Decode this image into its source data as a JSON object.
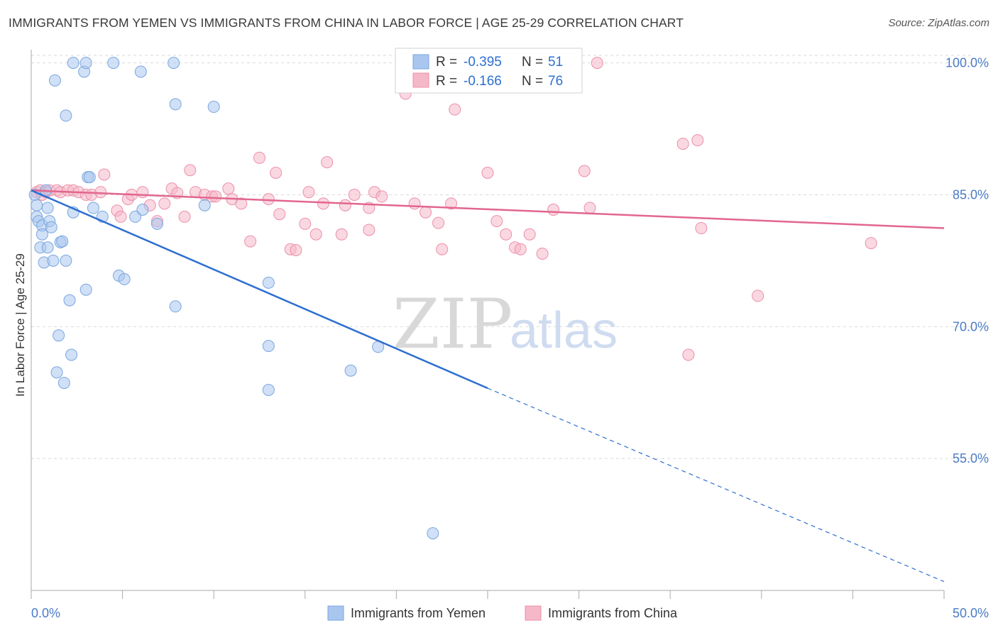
{
  "title": "IMMIGRANTS FROM YEMEN VS IMMIGRANTS FROM CHINA IN LABOR FORCE | AGE 25-29 CORRELATION CHART",
  "source": "Source: ZipAtlas.com",
  "watermark": {
    "zip": "ZIP",
    "atlas": "atlas"
  },
  "legend": {
    "r_label": "R =",
    "n_label": "N =",
    "rows": [
      {
        "r": "-0.395",
        "n": "51",
        "color": "#a9c6ef"
      },
      {
        "r": "-0.166",
        "n": "76",
        "color": "#f5b8c9"
      }
    ]
  },
  "bottom_legend": [
    {
      "label": "Immigrants from Yemen",
      "color": "#a9c6ef"
    },
    {
      "label": "Immigrants from China",
      "color": "#f5b8c9"
    }
  ],
  "colors": {
    "yemen_fill": "#a9c6ef",
    "yemen_stroke": "#7aa6e0",
    "yemen_line": "#2e6fd0",
    "china_fill": "#f5b8c9",
    "china_stroke": "#ec8faa",
    "china_line": "#e2668f",
    "grid": "#d9d9d9",
    "tick_label": "#4a7bc8"
  },
  "chart_data": {
    "type": "scatter",
    "title": "IMMIGRANTS FROM YEMEN VS IMMIGRANTS FROM CHINA IN LABOR FORCE | AGE 25-29 CORRELATION CHART",
    "xlabel": "",
    "ylabel": "In Labor Force | Age 25-29",
    "xlim": [
      0,
      50
    ],
    "ylim": [
      40,
      101.5
    ],
    "x_tick_labels": [
      "0.0%",
      "50.0%"
    ],
    "y_ticks": [
      55,
      70,
      85,
      100
    ],
    "y_tick_labels": [
      "55.0%",
      "70.0%",
      "85.0%",
      "100.0%"
    ],
    "grid": true,
    "legend_position": "top-center",
    "series": [
      {
        "name": "Immigrants from Yemen",
        "r": -0.395,
        "n": 51,
        "trend": {
          "x0": 0,
          "y0": 85.5,
          "x1": 25,
          "y1": 63.0,
          "dashed_to_x": 50,
          "dashed_to_y": 41.0
        },
        "points": [
          [
            0.2,
            85.0
          ],
          [
            0.3,
            83.8
          ],
          [
            0.3,
            82.5
          ],
          [
            0.4,
            82.0
          ],
          [
            0.5,
            79.0
          ],
          [
            0.6,
            81.5
          ],
          [
            0.6,
            80.5
          ],
          [
            0.7,
            77.3
          ],
          [
            0.8,
            85.5
          ],
          [
            0.9,
            79.0
          ],
          [
            0.9,
            83.5
          ],
          [
            1.0,
            82.0
          ],
          [
            1.1,
            81.3
          ],
          [
            1.2,
            77.5
          ],
          [
            1.3,
            98.0
          ],
          [
            1.4,
            64.8
          ],
          [
            1.5,
            69.0
          ],
          [
            1.6,
            79.6
          ],
          [
            1.7,
            79.7
          ],
          [
            1.8,
            63.6
          ],
          [
            1.9,
            94.0
          ],
          [
            1.9,
            77.5
          ],
          [
            2.1,
            73.0
          ],
          [
            2.2,
            66.8
          ],
          [
            2.3,
            83.0
          ],
          [
            2.3,
            100.0
          ],
          [
            2.9,
            99.0
          ],
          [
            3.0,
            100.0
          ],
          [
            3.0,
            74.2
          ],
          [
            3.1,
            87.0
          ],
          [
            3.2,
            87.0
          ],
          [
            3.4,
            83.5
          ],
          [
            3.9,
            82.5
          ],
          [
            4.5,
            100.0
          ],
          [
            4.8,
            75.8
          ],
          [
            5.1,
            75.4
          ],
          [
            5.7,
            82.5
          ],
          [
            6.0,
            99.0
          ],
          [
            6.1,
            83.3
          ],
          [
            6.9,
            81.7
          ],
          [
            7.8,
            100.0
          ],
          [
            7.9,
            95.3
          ],
          [
            7.9,
            72.3
          ],
          [
            9.5,
            83.8
          ],
          [
            10.0,
            95.0
          ],
          [
            13.0,
            75.0
          ],
          [
            13.0,
            67.8
          ],
          [
            13.0,
            62.8
          ],
          [
            17.5,
            65.0
          ],
          [
            19.0,
            67.7
          ],
          [
            22.0,
            46.5
          ]
        ]
      },
      {
        "name": "Immigrants from China",
        "r": -0.166,
        "n": 76,
        "trend": {
          "x0": 0,
          "y0": 85.5,
          "x1": 50,
          "y1": 81.2
        },
        "points": [
          [
            0.3,
            85.3
          ],
          [
            0.5,
            85.5
          ],
          [
            0.6,
            85.0
          ],
          [
            0.8,
            85.3
          ],
          [
            1.0,
            85.5
          ],
          [
            1.4,
            85.5
          ],
          [
            1.6,
            85.3
          ],
          [
            2.0,
            85.5
          ],
          [
            2.3,
            85.5
          ],
          [
            2.6,
            85.3
          ],
          [
            3.0,
            85.0
          ],
          [
            3.3,
            85.0
          ],
          [
            3.8,
            85.3
          ],
          [
            4.0,
            87.3
          ],
          [
            4.7,
            83.2
          ],
          [
            4.9,
            82.5
          ],
          [
            5.3,
            84.5
          ],
          [
            5.5,
            85.0
          ],
          [
            6.1,
            85.3
          ],
          [
            6.5,
            83.8
          ],
          [
            6.9,
            82.0
          ],
          [
            7.3,
            84.0
          ],
          [
            7.7,
            85.7
          ],
          [
            8.0,
            85.2
          ],
          [
            8.4,
            82.5
          ],
          [
            8.7,
            87.8
          ],
          [
            9.0,
            85.3
          ],
          [
            9.5,
            85.0
          ],
          [
            9.9,
            84.8
          ],
          [
            10.1,
            84.8
          ],
          [
            10.8,
            85.7
          ],
          [
            11.0,
            84.5
          ],
          [
            11.5,
            84.0
          ],
          [
            12.0,
            79.7
          ],
          [
            12.5,
            89.2
          ],
          [
            13.0,
            84.5
          ],
          [
            13.4,
            87.5
          ],
          [
            13.6,
            82.8
          ],
          [
            14.2,
            78.8
          ],
          [
            14.5,
            78.7
          ],
          [
            15.0,
            81.7
          ],
          [
            15.2,
            85.3
          ],
          [
            15.6,
            80.5
          ],
          [
            16.0,
            84.0
          ],
          [
            16.2,
            88.7
          ],
          [
            17.0,
            80.5
          ],
          [
            17.2,
            83.8
          ],
          [
            17.7,
            85.0
          ],
          [
            18.5,
            83.5
          ],
          [
            18.5,
            81.0
          ],
          [
            18.8,
            85.3
          ],
          [
            19.2,
            84.8
          ],
          [
            20.5,
            96.5
          ],
          [
            21.0,
            84.0
          ],
          [
            21.6,
            83.0
          ],
          [
            22.3,
            81.8
          ],
          [
            22.5,
            78.8
          ],
          [
            23.0,
            84.0
          ],
          [
            23.2,
            94.7
          ],
          [
            25.0,
            87.5
          ],
          [
            25.5,
            82.0
          ],
          [
            26.0,
            80.5
          ],
          [
            26.5,
            79.0
          ],
          [
            26.8,
            78.8
          ],
          [
            27.3,
            80.5
          ],
          [
            28.0,
            78.3
          ],
          [
            28.6,
            83.3
          ],
          [
            30.3,
            87.7
          ],
          [
            30.6,
            83.5
          ],
          [
            31.0,
            100.0
          ],
          [
            35.7,
            90.8
          ],
          [
            36.0,
            66.8
          ],
          [
            36.5,
            91.2
          ],
          [
            36.7,
            81.2
          ],
          [
            39.8,
            73.5
          ],
          [
            46.0,
            79.5
          ]
        ]
      }
    ]
  }
}
